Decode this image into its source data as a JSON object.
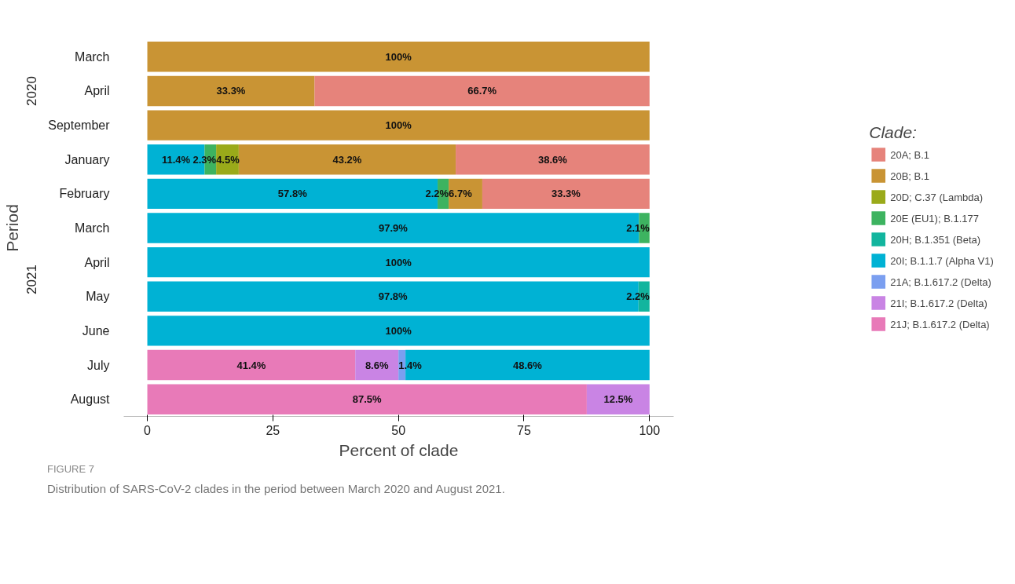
{
  "chart_data": {
    "type": "bar",
    "orientation": "horizontal",
    "stacked": true,
    "categories": [
      "March",
      "April",
      "September",
      "January",
      "February",
      "March",
      "April",
      "May",
      "June",
      "July",
      "August"
    ],
    "xlabel": "Percent of clade",
    "ylabel": "Period",
    "legend_title": "Clade:",
    "legend": "right",
    "grid": false,
    "xlim": [
      -4.7,
      104.8
    ],
    "xticks": [
      0,
      25,
      50,
      75,
      100
    ],
    "annotations": [
      "2020",
      "2021",
      "FIGURE 7",
      "Distribution of SARS-CoV-2 clades in the period between March 2020 and August 2021."
    ],
    "series": [
      {
        "name": "21J; B.1.617.2 (Delta)",
        "color": "#e87ab8",
        "values": [
          null,
          null,
          null,
          null,
          null,
          null,
          null,
          null,
          null,
          41.4,
          87.5
        ],
        "value_labels": [
          null,
          null,
          null,
          null,
          null,
          null,
          null,
          null,
          null,
          "41.4%",
          "87.5%"
        ]
      },
      {
        "name": "21I; B.1.617.2 (Delta)",
        "color": "#c984e4",
        "values": [
          null,
          null,
          null,
          null,
          null,
          null,
          null,
          null,
          null,
          8.6,
          12.5
        ],
        "value_labels": [
          null,
          null,
          null,
          null,
          null,
          null,
          null,
          null,
          null,
          "8.6%",
          "12.5%"
        ]
      },
      {
        "name": "21A; B.1.617.2 (Delta)",
        "color": "#7b9ff0",
        "values": [
          null,
          null,
          null,
          null,
          null,
          null,
          null,
          null,
          null,
          1.4,
          null
        ],
        "value_labels": [
          null,
          null,
          null,
          null,
          null,
          null,
          null,
          null,
          null,
          "1.4%",
          null
        ]
      },
      {
        "name": "20I; B.1.1.7 (Alpha V1)",
        "color": "#00b2d4",
        "values": [
          null,
          null,
          null,
          11.4,
          57.8,
          97.9,
          100,
          97.8,
          100,
          48.6,
          null
        ],
        "value_labels": [
          null,
          null,
          null,
          "11.4%",
          "57.8%",
          "97.9%",
          "100%",
          "97.8%",
          "100%",
          "48.6%",
          null
        ]
      },
      {
        "name": "20H; B.1.351 (Beta)",
        "color": "#12b59e",
        "values": [
          null,
          null,
          null,
          null,
          null,
          null,
          null,
          2.2,
          null,
          null,
          null
        ],
        "value_labels": [
          null,
          null,
          null,
          null,
          null,
          null,
          null,
          "2.2%",
          null,
          null,
          null
        ]
      },
      {
        "name": "20E (EU1); B.1.177",
        "color": "#3db360",
        "values": [
          null,
          null,
          null,
          2.3,
          2.2,
          2.1,
          null,
          null,
          null,
          null,
          null
        ],
        "value_labels": [
          null,
          null,
          null,
          "2.3%",
          "2.2%",
          "2.1%",
          null,
          null,
          null,
          null,
          null
        ]
      },
      {
        "name": "20D; C.37 (Lambda)",
        "color": "#9aaa1a",
        "values": [
          null,
          null,
          null,
          4.5,
          null,
          null,
          null,
          null,
          null,
          null,
          null
        ],
        "value_labels": [
          null,
          null,
          null,
          "4.5%",
          null,
          null,
          null,
          null,
          null,
          null,
          null
        ]
      },
      {
        "name": "20B; B.1",
        "color": "#c99434",
        "values": [
          100,
          33.3,
          100,
          43.2,
          6.7,
          null,
          null,
          null,
          null,
          null,
          null
        ],
        "value_labels": [
          "100%",
          "33.3%",
          "100%",
          "43.2%",
          "6.7%",
          null,
          null,
          null,
          null,
          null,
          null
        ]
      },
      {
        "name": "20A; B.1",
        "color": "#e6837b",
        "values": [
          null,
          66.7,
          null,
          38.6,
          33.3,
          null,
          null,
          null,
          null,
          null,
          null
        ],
        "value_labels": [
          null,
          "66.7%",
          null,
          "38.6%",
          "33.3%",
          null,
          null,
          null,
          null,
          null,
          null
        ]
      }
    ]
  }
}
